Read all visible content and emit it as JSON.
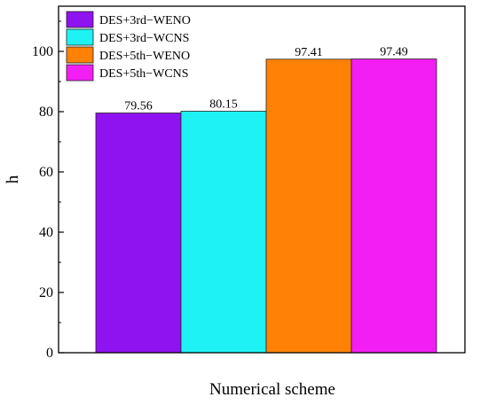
{
  "chart_data": {
    "type": "bar",
    "xlabel": "Numerical scheme",
    "ylabel": "h",
    "ylim": [
      0,
      115
    ],
    "yticks": [
      0,
      20,
      40,
      60,
      80,
      100
    ],
    "grid": false,
    "legend_position": "top-left",
    "series": [
      {
        "name": "DES+3rd−WENO",
        "value": 79.56,
        "label": "79.56",
        "color": "#8f12f0"
      },
      {
        "name": "DES+3rd−WCNS",
        "value": 80.15,
        "label": "80.15",
        "color": "#1ef2f4"
      },
      {
        "name": "DES+5th−WENO",
        "value": 97.41,
        "label": "97.41",
        "color": "#ff8106"
      },
      {
        "name": "DES+5th−WCNS",
        "value": 97.49,
        "label": "97.49",
        "color": "#f21ef4"
      }
    ]
  }
}
